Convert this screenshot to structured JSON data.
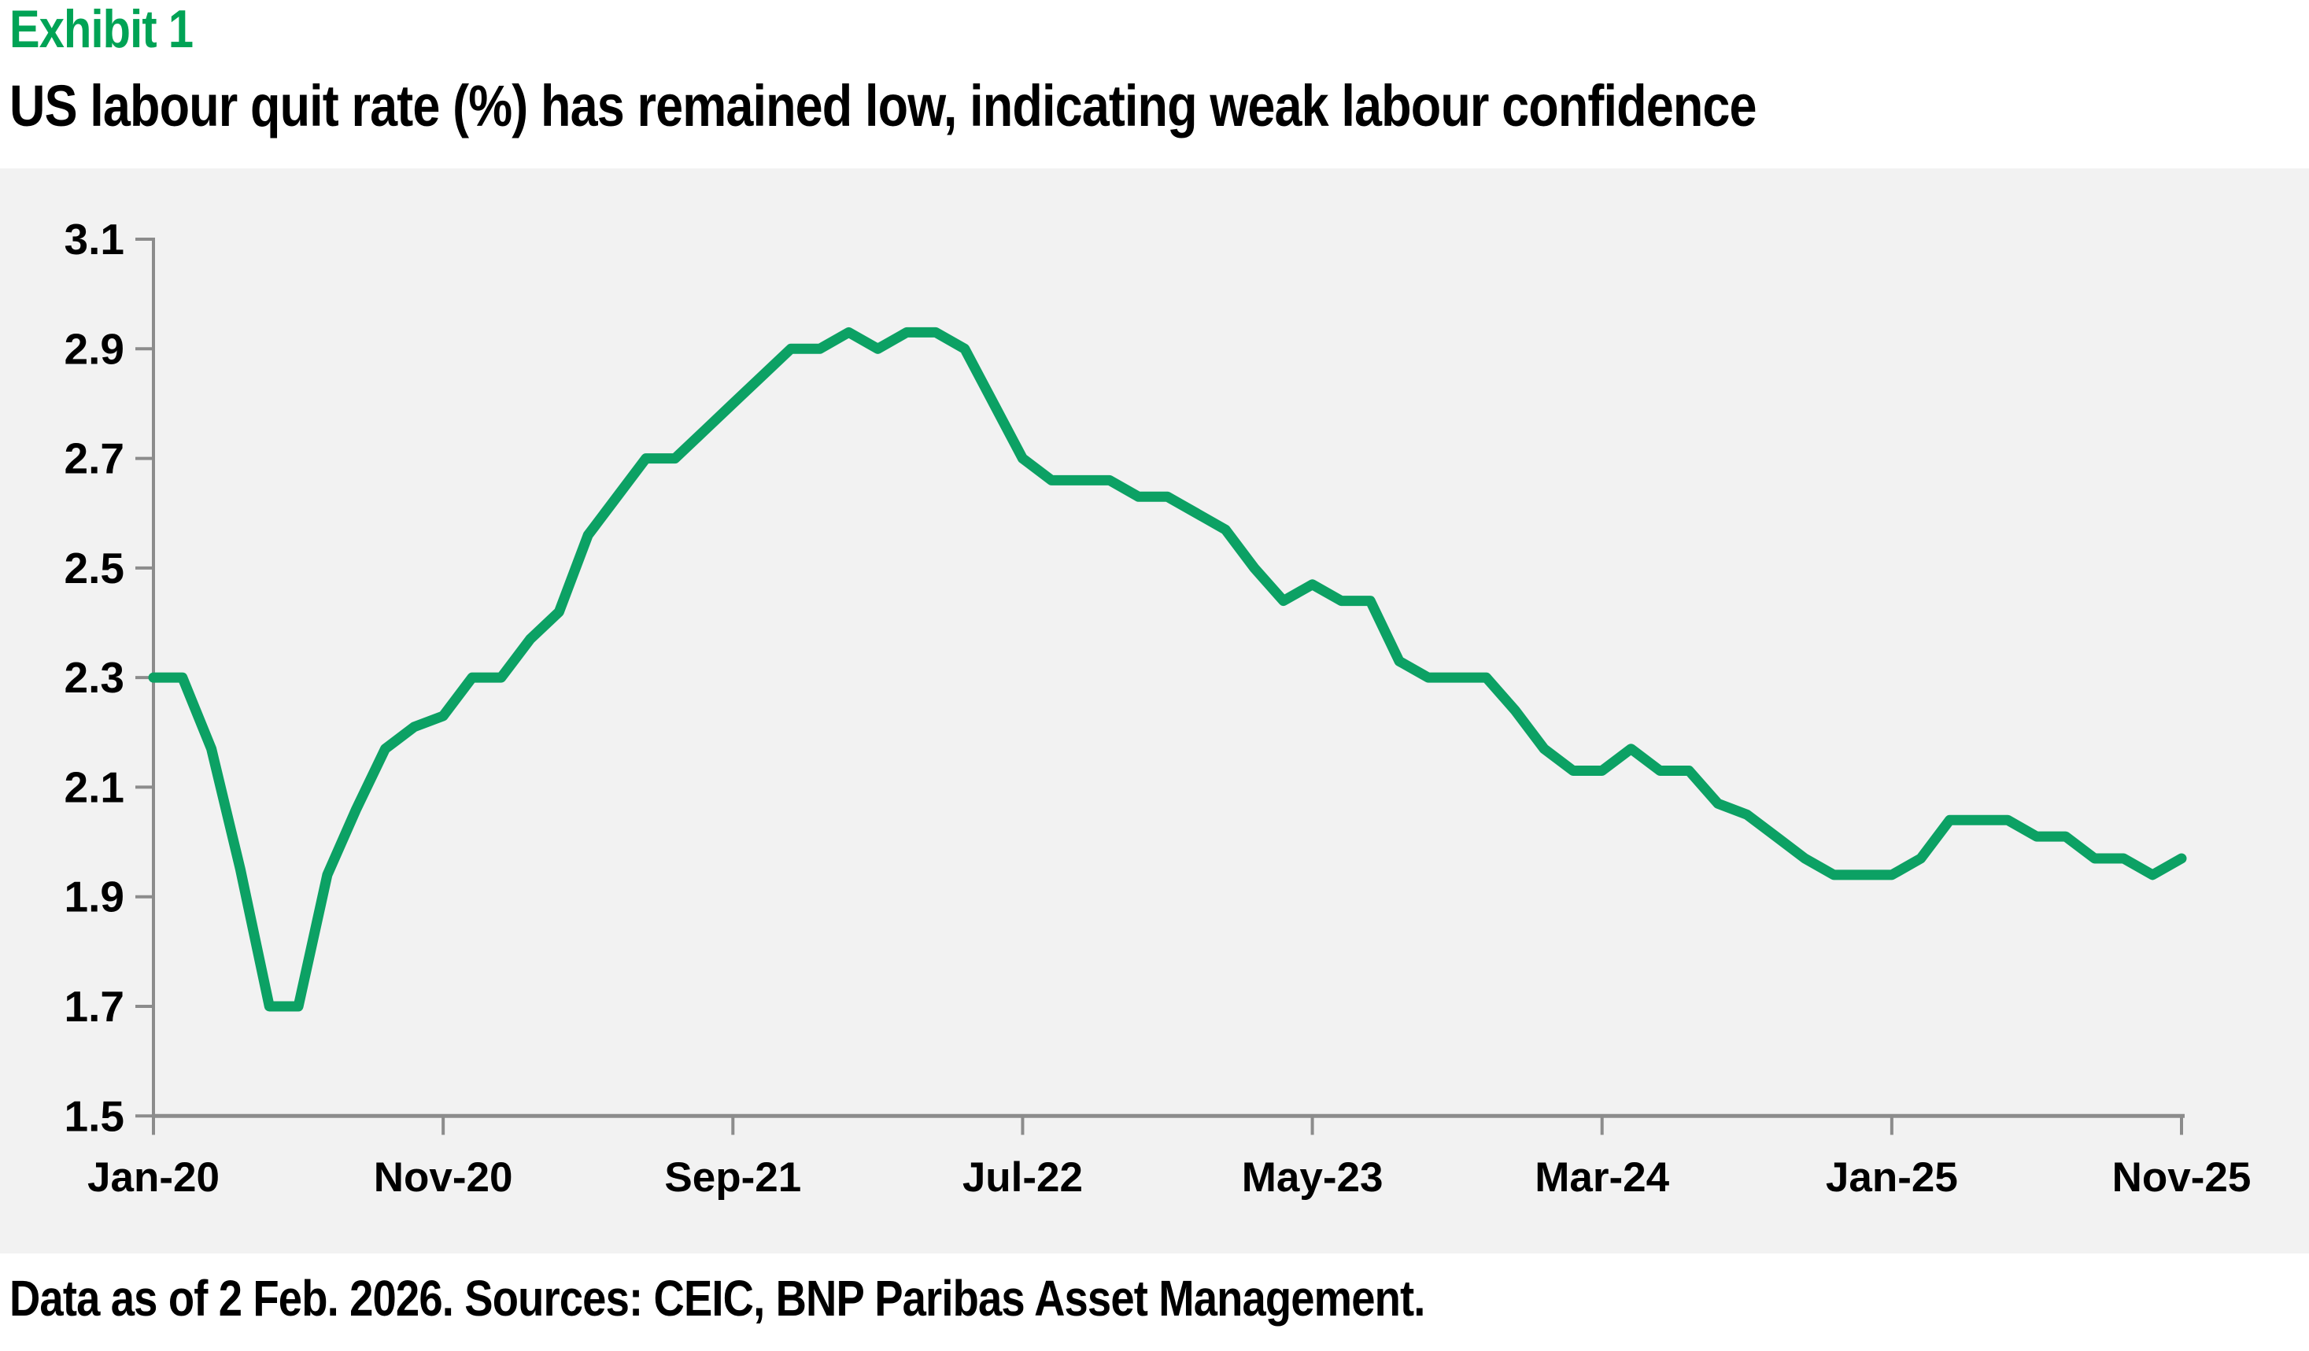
{
  "header": {
    "exhibit_label": "Exhibit 1",
    "title": "US labour quit rate (%) has remained low, indicating weak labour confidence"
  },
  "footnote": "Data as of 2 Feb. 2026. Sources: CEIC, BNP Paribas Asset Management.",
  "colors": {
    "exhibit_green": "#00a355",
    "line_green": "#0ca164",
    "axis_gray": "#8c8c8c",
    "plot_background": "#f2f2f2",
    "text_black": "#000000",
    "page_background": "#ffffff"
  },
  "chart_data": {
    "type": "line",
    "title": "US labour quit rate (%)",
    "xlabel": "",
    "ylabel": "",
    "ylim": [
      1.5,
      3.1
    ],
    "y_ticks": [
      3.1,
      2.9,
      2.7,
      2.5,
      2.3,
      2.1,
      1.9,
      1.7,
      1.5
    ],
    "grid": "off",
    "legend_position": "none",
    "x_tick_label_indices": [
      0,
      10,
      20,
      30,
      40,
      50,
      60,
      70
    ],
    "x_tick_labels": [
      "Jan-20",
      "Nov-20",
      "Sep-21",
      "Jul-22",
      "May-23",
      "Mar-24",
      "Jan-25",
      "Nov-25"
    ],
    "x": [
      "Jan-20",
      "Feb-20",
      "Mar-20",
      "Apr-20",
      "May-20",
      "Jun-20",
      "Jul-20",
      "Aug-20",
      "Sep-20",
      "Oct-20",
      "Nov-20",
      "Dec-20",
      "Jan-21",
      "Feb-21",
      "Mar-21",
      "Apr-21",
      "May-21",
      "Jun-21",
      "Jul-21",
      "Aug-21",
      "Sep-21",
      "Oct-21",
      "Nov-21",
      "Dec-21",
      "Jan-22",
      "Feb-22",
      "Mar-22",
      "Apr-22",
      "May-22",
      "Jun-22",
      "Jul-22",
      "Aug-22",
      "Sep-22",
      "Oct-22",
      "Nov-22",
      "Dec-22",
      "Jan-23",
      "Feb-23",
      "Mar-23",
      "Apr-23",
      "May-23",
      "Jun-23",
      "Jul-23",
      "Aug-23",
      "Sep-23",
      "Oct-23",
      "Nov-23",
      "Dec-23",
      "Jan-24",
      "Feb-24",
      "Mar-24",
      "Apr-24",
      "May-24",
      "Jun-24",
      "Jul-24",
      "Aug-24",
      "Sep-24",
      "Oct-24",
      "Nov-24",
      "Dec-24",
      "Jan-25",
      "Feb-25",
      "Mar-25",
      "Apr-25",
      "May-25",
      "Jun-25",
      "Jul-25",
      "Aug-25",
      "Sep-25",
      "Oct-25",
      "Nov-25"
    ],
    "series": [
      {
        "name": "US labour quit rate (%)",
        "frequency": "monthly",
        "values": [
          2.3,
          2.3,
          2.17,
          1.95,
          1.7,
          1.7,
          1.94,
          2.06,
          2.17,
          2.21,
          2.23,
          2.3,
          2.3,
          2.37,
          2.42,
          2.56,
          2.63,
          2.7,
          2.7,
          2.75,
          2.8,
          2.85,
          2.9,
          2.9,
          2.93,
          2.9,
          2.93,
          2.93,
          2.9,
          2.8,
          2.7,
          2.66,
          2.66,
          2.66,
          2.63,
          2.63,
          2.6,
          2.57,
          2.5,
          2.44,
          2.47,
          2.44,
          2.44,
          2.33,
          2.3,
          2.3,
          2.3,
          2.24,
          2.17,
          2.13,
          2.13,
          2.17,
          2.13,
          2.13,
          2.07,
          2.05,
          2.01,
          1.97,
          1.94,
          1.94,
          1.94,
          1.97,
          2.04,
          2.04,
          2.04,
          2.01,
          2.01,
          1.97,
          1.97,
          1.94,
          1.97
        ]
      }
    ]
  }
}
